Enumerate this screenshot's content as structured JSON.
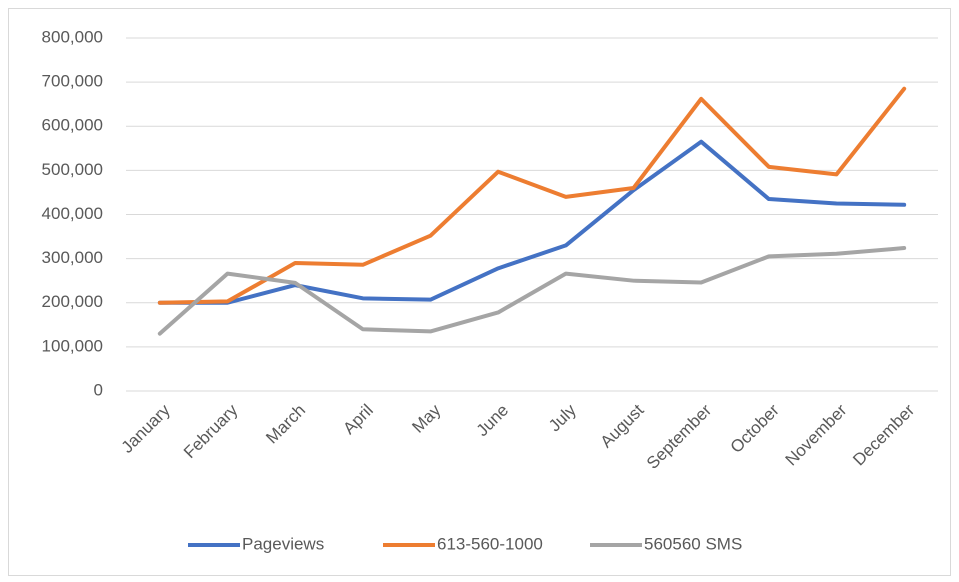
{
  "chart_data": {
    "type": "line",
    "categories": [
      "January",
      "February",
      "March",
      "April",
      "May",
      "June",
      "July",
      "August",
      "September",
      "October",
      "November",
      "December"
    ],
    "series": [
      {
        "name": "Pageviews",
        "color": "#4472c4",
        "values": [
          200000,
          200000,
          240000,
          210000,
          207000,
          278000,
          330000,
          455000,
          565000,
          435000,
          425000,
          422000
        ]
      },
      {
        "name": "613-560-1000",
        "color": "#ed7d31",
        "values": [
          200000,
          203000,
          290000,
          286000,
          352000,
          497000,
          440000,
          460000,
          662000,
          508000,
          491000,
          685000
        ]
      },
      {
        "name": "560560 SMS",
        "color": "#a5a5a5",
        "values": [
          130000,
          266000,
          245000,
          140000,
          135000,
          178000,
          266000,
          250000,
          246000,
          305000,
          311000,
          324000
        ]
      }
    ],
    "ylim": [
      0,
      800000
    ],
    "yticks": [
      0,
      {
        "value": 100000,
        "label": "100,000"
      },
      {
        "value": 200000,
        "label": "200,000"
      },
      {
        "value": 300000,
        "label": "300,000"
      },
      {
        "value": 400000,
        "label": "400,000"
      },
      {
        "value": 500000,
        "label": "500,000"
      },
      {
        "value": 600000,
        "label": "600,000"
      },
      {
        "value": 700000,
        "label": "700,000"
      },
      {
        "value": 800000,
        "label": "800,000"
      }
    ],
    "grid": true,
    "legend": "bottom"
  }
}
